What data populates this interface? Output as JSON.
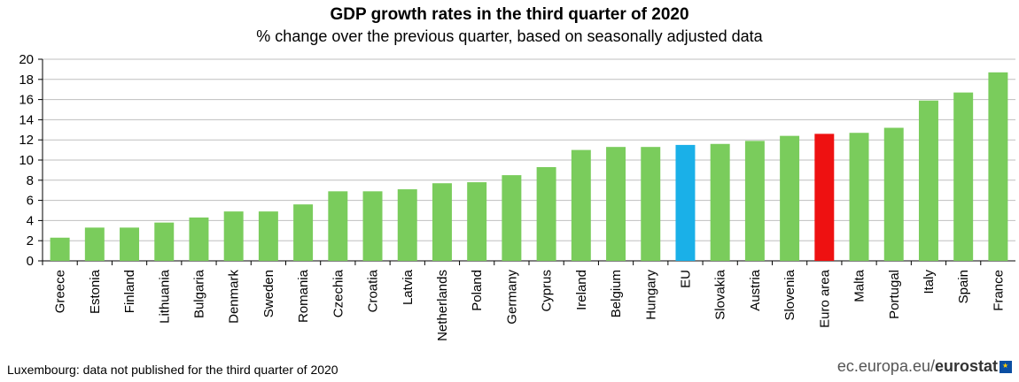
{
  "chart_data": {
    "type": "bar",
    "title": "GDP growth rates in the third quarter of 2020",
    "subtitle": "% change over the previous quarter, based on seasonally adjusted data",
    "categories": [
      "Greece",
      "Estonia",
      "Finland",
      "Lithuania",
      "Bulgaria",
      "Denmark",
      "Sweden",
      "Romania",
      "Czechia",
      "Croatia",
      "Latvia",
      "Netherlands",
      "Poland",
      "Germany",
      "Cyprus",
      "Ireland",
      "Belgium",
      "Hungary",
      "EU",
      "Slovakia",
      "Austria",
      "Slovenia",
      "Euro area",
      "Malta",
      "Portugal",
      "Italy",
      "Spain",
      "France"
    ],
    "values": [
      2.3,
      3.3,
      3.3,
      3.8,
      4.3,
      4.9,
      4.9,
      5.6,
      6.9,
      6.9,
      7.1,
      7.7,
      7.8,
      8.5,
      9.3,
      11.0,
      11.3,
      11.3,
      11.5,
      11.6,
      11.9,
      12.4,
      12.6,
      12.7,
      13.2,
      15.9,
      16.7,
      18.7
    ],
    "highlight": {
      "EU": "#1ab0e8",
      "Euro area": "#ee1111"
    },
    "bar_color": "#7acc5c",
    "ylim": [
      0,
      20
    ],
    "yticks": [
      "0",
      "2",
      "4",
      "6",
      "8",
      "10",
      "12",
      "14",
      "16",
      "18",
      "20"
    ],
    "grid": true
  },
  "footnote": "Luxembourg: data not published for the third quarter of 2020",
  "source": {
    "prefix": "ec.europa.eu/",
    "brand": "eurostat",
    "icon": "eu-flag-icon"
  }
}
